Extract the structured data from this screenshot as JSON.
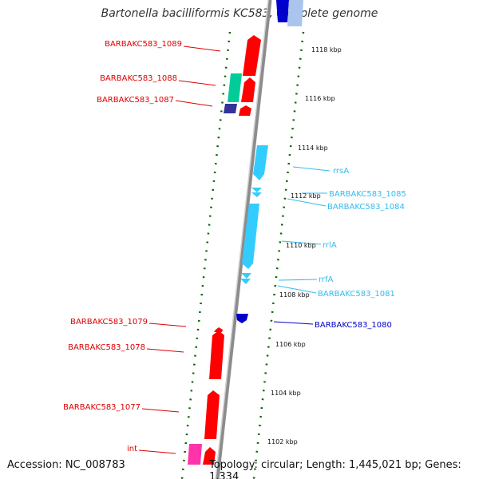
{
  "title": "Bartonella bacilliformis KC583, complete genome",
  "footer": {
    "accession": "Accession: NC_008783",
    "topology": "Topology: circular; Length: 1,445,021 bp; Genes: 1,334"
  },
  "colors": {
    "forward_gene": "#ff0000",
    "reverse_gene": "#33ccff",
    "dark_blue_gene": "#0000cc",
    "green_gene": "#00cc99",
    "navy_gene": "#333399",
    "magenta_gene": "#ff33aa",
    "backbone": "#999999",
    "tick_color": "#006600",
    "left_label": "#dd0000",
    "right_label": "#33bbee"
  },
  "scale_labels": [
    "1118 kbp",
    "1116 kbp",
    "1114 kbp",
    "1112 kbp",
    "1110 kbp",
    "1108 kbp",
    "1106 kbp",
    "1104 kbp",
    "1102 kbp"
  ],
  "left_labels": [
    "BARBAKC583_1089",
    "BARBAKC583_1088",
    "BARBAKC583_1087",
    "BARBAKC583_1079",
    "BARBAKC583_1078",
    "BARBAKC583_1077",
    "int"
  ],
  "right_labels": [
    "rrsA",
    "BARBAKC583_1085",
    "BARBAKC583_1084",
    "rrlA",
    "rrfA",
    "BARBAKC583_1081",
    "BARBAKC583_1080"
  ]
}
